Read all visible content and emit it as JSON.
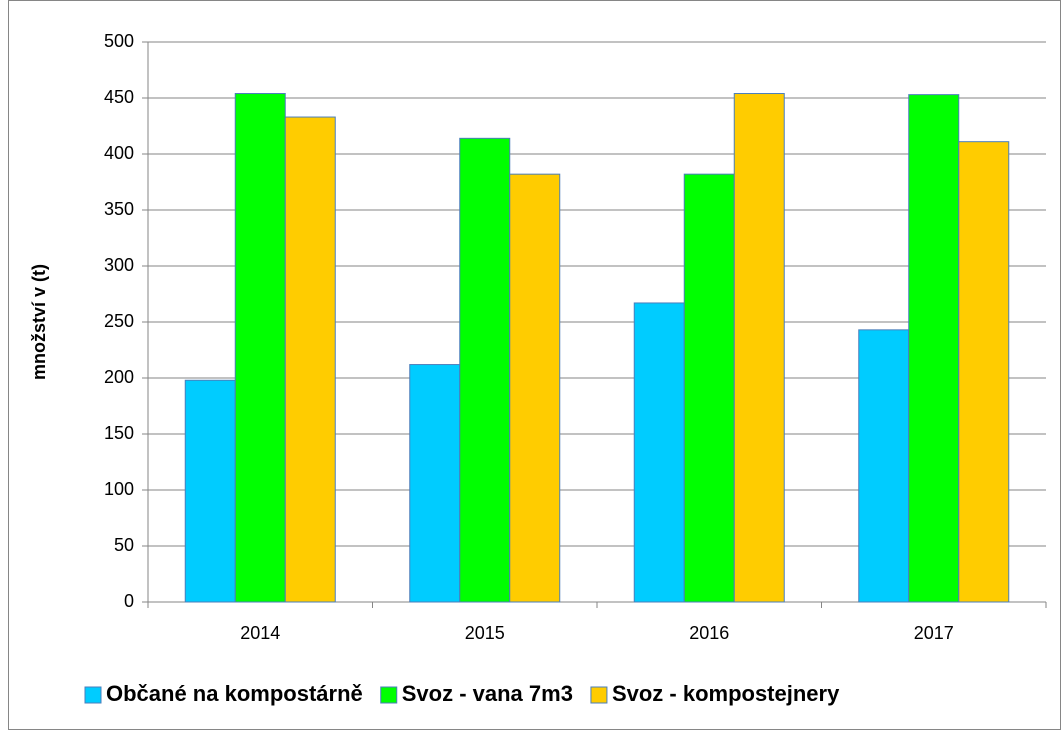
{
  "chart_data": {
    "type": "bar",
    "categories": [
      "2014",
      "2015",
      "2016",
      "2017"
    ],
    "series": [
      {
        "name": "Občané na kompostárně",
        "color": "#00ccff",
        "values": [
          198,
          212,
          267,
          243
        ]
      },
      {
        "name": "Svoz - vana 7m3",
        "color": "#00ff00",
        "values": [
          454,
          414,
          382,
          453
        ]
      },
      {
        "name": "Svoz - kompostejnery",
        "color": "#ffcc00",
        "values": [
          433,
          382,
          454,
          411
        ]
      }
    ],
    "y_label": "množství v (t)",
    "ylim": [
      0,
      500
    ],
    "yticks": [
      0,
      50,
      100,
      150,
      200,
      250,
      300,
      350,
      400,
      450,
      500
    ],
    "grid": true,
    "legend": "bottom"
  }
}
